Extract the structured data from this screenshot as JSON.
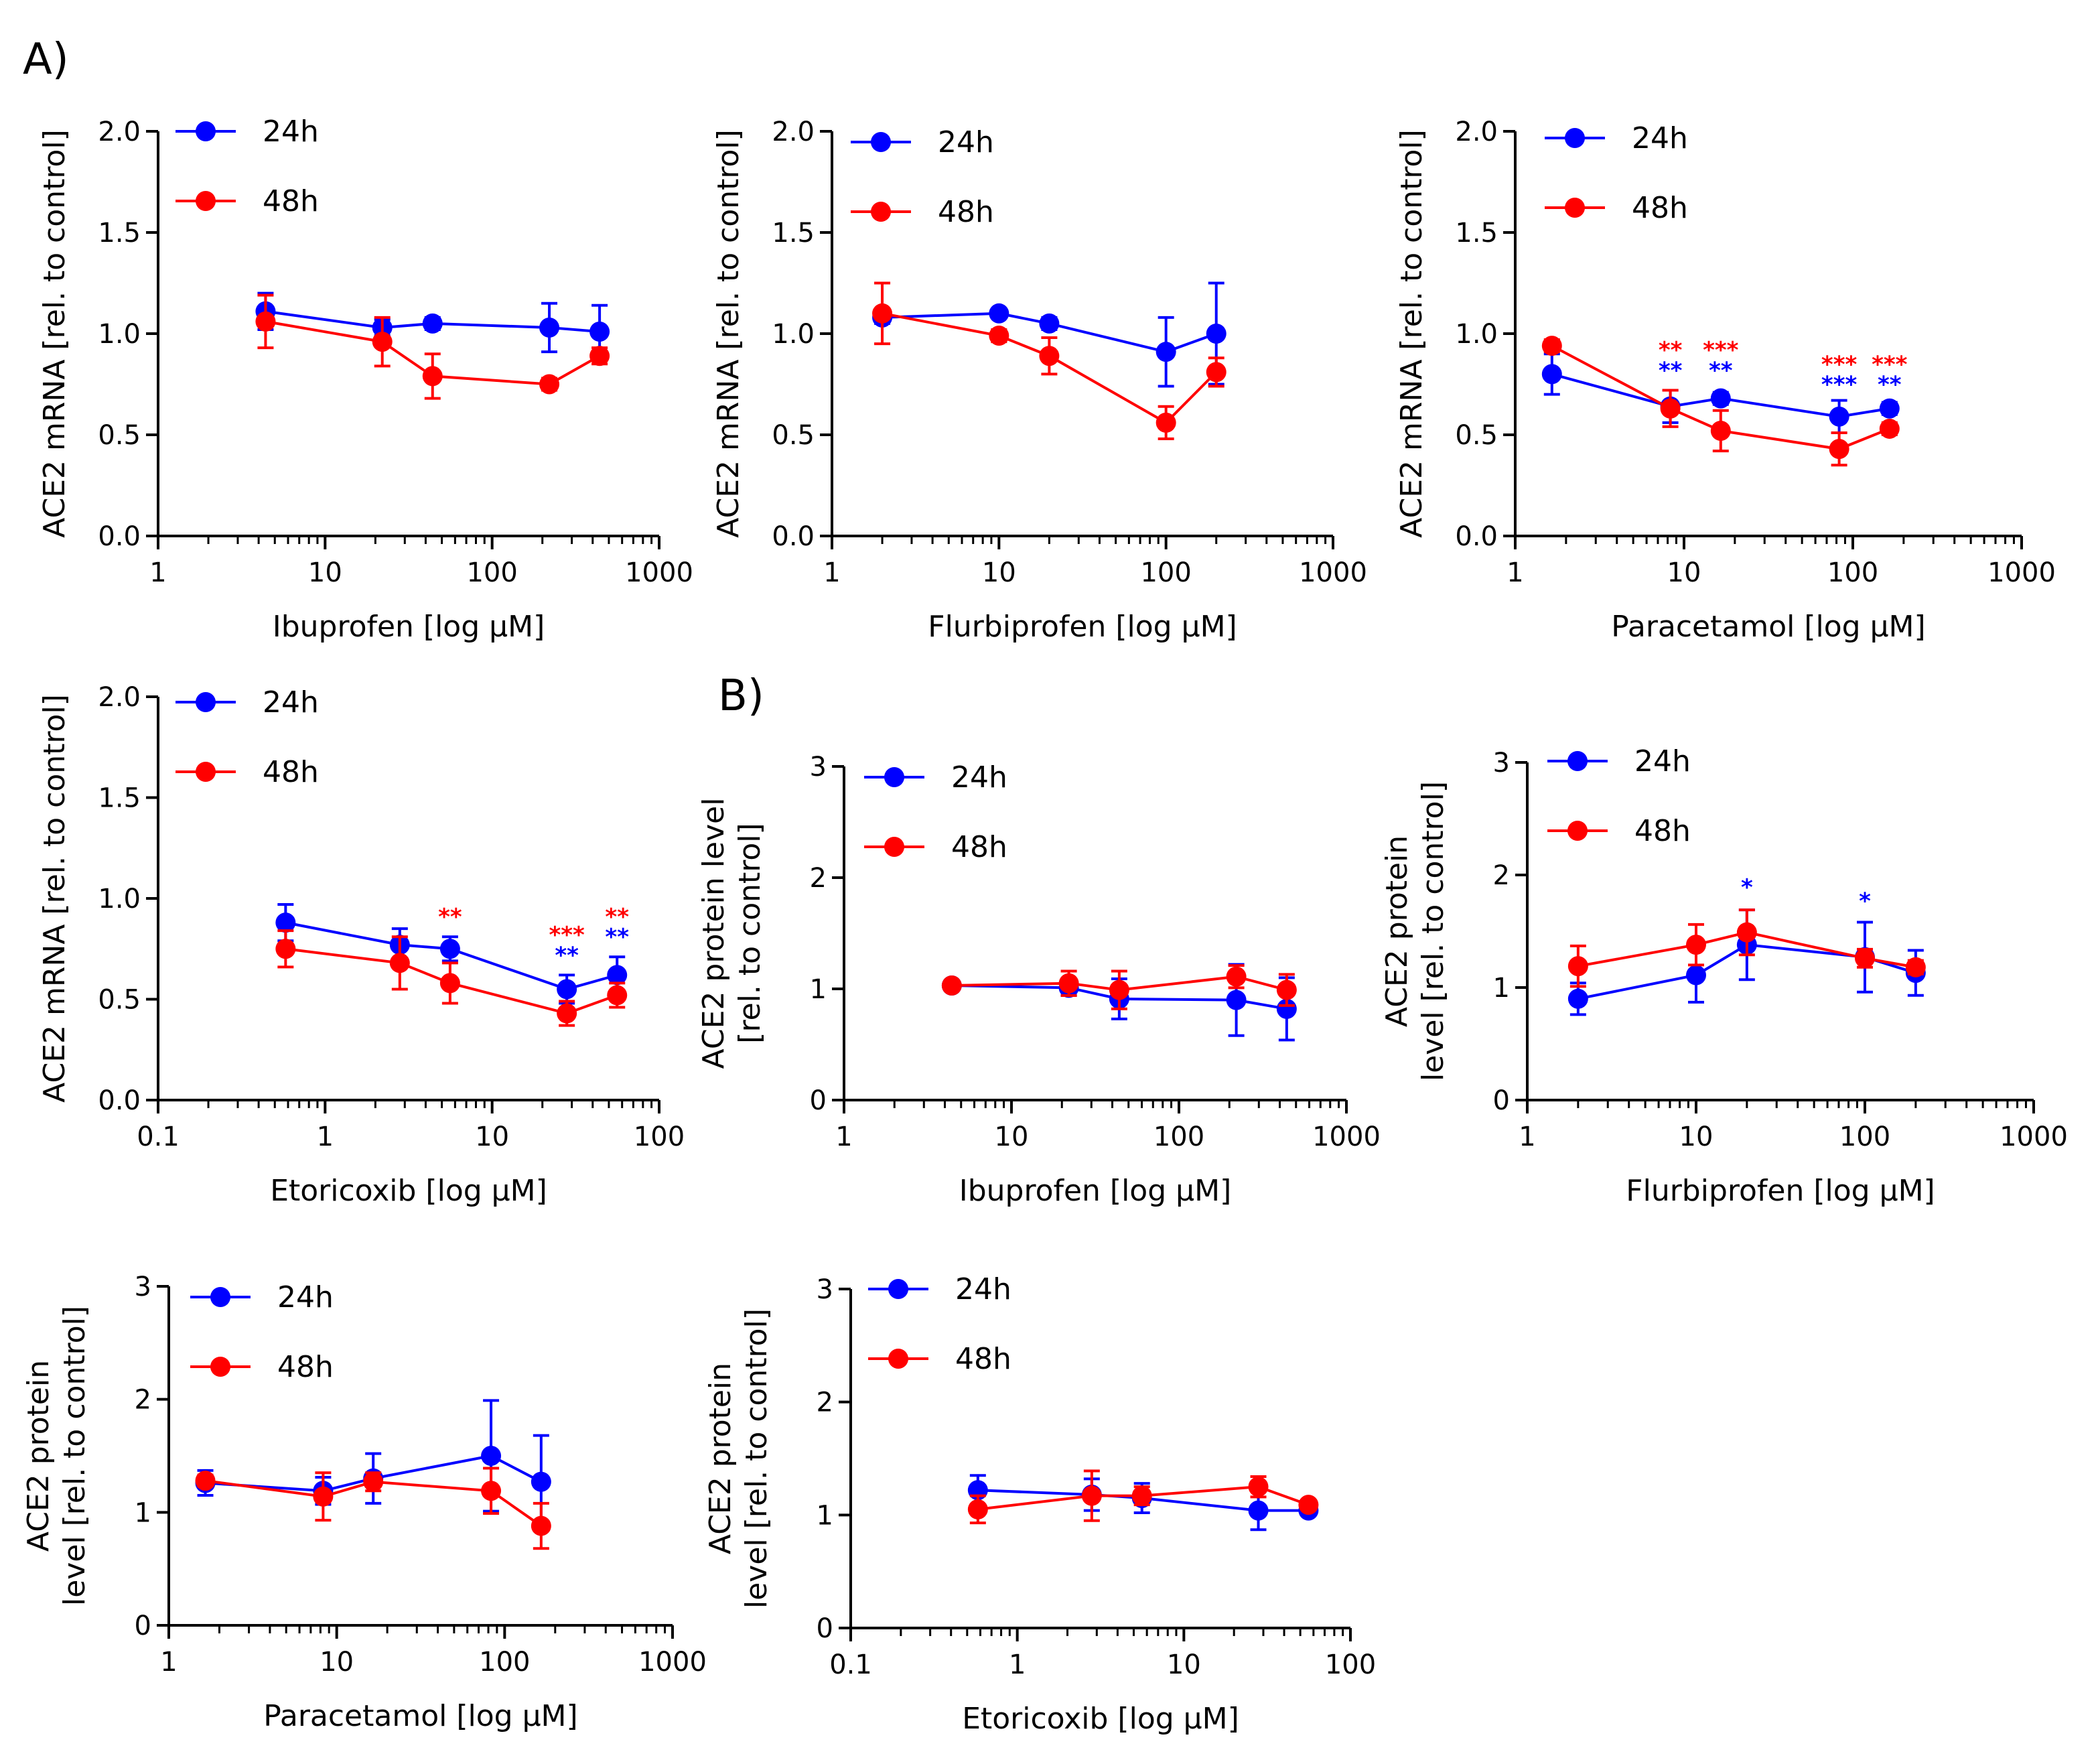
{
  "panel_labels": [
    "A)",
    "B)"
  ],
  "colors": {
    "series_24h": "#0000ff",
    "series_48h": "#ff0000",
    "axis": "#000000"
  },
  "chart_data": [
    {
      "type": "line",
      "title": "",
      "xlabel": "Ibuprofen [log µM]",
      "ylabel": "ACE2 mRNA [rel. to control]",
      "xscale": "log",
      "xlim": [
        1,
        1000
      ],
      "ylim": [
        0,
        2
      ],
      "xticks": [
        1,
        10,
        100,
        1000
      ],
      "xtick_labels": [
        "1",
        "10",
        "100",
        "1000"
      ],
      "yticks": [
        0,
        0.5,
        1,
        1.5,
        2
      ],
      "ytick_labels": [
        "0.0",
        "0.5",
        "1.0",
        "1.5",
        "2.0"
      ],
      "legend": [
        "24h",
        "48h"
      ],
      "series": [
        {
          "name": "24h",
          "color": "#0000ff",
          "x": [
            4.4,
            22,
            44,
            220,
            440
          ],
          "y": [
            1.11,
            1.03,
            1.05,
            1.03,
            1.01
          ],
          "err": [
            0.09,
            0.04,
            0.03,
            0.12,
            0.13
          ]
        },
        {
          "name": "48h",
          "color": "#ff0000",
          "x": [
            4.4,
            22,
            44,
            220,
            440
          ],
          "y": [
            1.06,
            0.96,
            0.79,
            0.75,
            0.89
          ],
          "err": [
            0.13,
            0.12,
            0.11,
            0.03,
            0.04
          ]
        }
      ],
      "annotations": []
    },
    {
      "type": "line",
      "title": "",
      "xlabel": "Flurbiprofen [log µM]",
      "ylabel": "ACE2 mRNA [rel. to control]",
      "xscale": "log",
      "xlim": [
        1,
        1000
      ],
      "ylim": [
        0,
        2
      ],
      "xticks": [
        1,
        10,
        100,
        1000
      ],
      "xtick_labels": [
        "1",
        "10",
        "100",
        "1000"
      ],
      "yticks": [
        0,
        0.5,
        1,
        1.5,
        2
      ],
      "ytick_labels": [
        "0.0",
        "0.5",
        "1.0",
        "1.5",
        "2.0"
      ],
      "legend": [
        "24h",
        "48h"
      ],
      "series": [
        {
          "name": "24h",
          "color": "#0000ff",
          "x": [
            2,
            10,
            20,
            100,
            200
          ],
          "y": [
            1.08,
            1.1,
            1.05,
            0.91,
            1.0
          ],
          "err": [
            0.03,
            0.02,
            0.03,
            0.17,
            0.25
          ]
        },
        {
          "name": "48h",
          "color": "#ff0000",
          "x": [
            2,
            10,
            20,
            100,
            200
          ],
          "y": [
            1.1,
            0.99,
            0.89,
            0.56,
            0.81
          ],
          "err": [
            0.15,
            0.03,
            0.09,
            0.08,
            0.07
          ]
        }
      ],
      "annotations": []
    },
    {
      "type": "line",
      "title": "",
      "xlabel": "Paracetamol [log µM]",
      "ylabel": "ACE2 mRNA [rel. to control]",
      "xscale": "log",
      "xlim": [
        1,
        1000
      ],
      "ylim": [
        0,
        2
      ],
      "xticks": [
        1,
        10,
        100,
        1000
      ],
      "xtick_labels": [
        "1",
        "10",
        "100",
        "1000"
      ],
      "yticks": [
        0,
        0.5,
        1,
        1.5,
        2
      ],
      "ytick_labels": [
        "0.0",
        "0.5",
        "1.0",
        "1.5",
        "2.0"
      ],
      "legend": [
        "24h",
        "48h"
      ],
      "series": [
        {
          "name": "24h",
          "color": "#0000ff",
          "x": [
            1.65,
            8.3,
            16.5,
            83,
            165
          ],
          "y": [
            0.8,
            0.64,
            0.68,
            0.59,
            0.63
          ],
          "err": [
            0.1,
            0.08,
            0.03,
            0.08,
            0.03
          ]
        },
        {
          "name": "48h",
          "color": "#ff0000",
          "x": [
            1.65,
            8.3,
            16.5,
            83,
            165
          ],
          "y": [
            0.94,
            0.63,
            0.52,
            0.43,
            0.53
          ],
          "err": [
            0.03,
            0.09,
            0.1,
            0.08,
            0.03
          ]
        }
      ],
      "annotations": [
        {
          "x": 8.3,
          "y": 0.88,
          "text": "**",
          "color": "#ff0000"
        },
        {
          "x": 8.3,
          "y": 0.78,
          "text": "**",
          "color": "#0000ff"
        },
        {
          "x": 16.5,
          "y": 0.88,
          "text": "***",
          "color": "#ff0000"
        },
        {
          "x": 16.5,
          "y": 0.78,
          "text": "**",
          "color": "#0000ff"
        },
        {
          "x": 83,
          "y": 0.81,
          "text": "***",
          "color": "#ff0000"
        },
        {
          "x": 83,
          "y": 0.71,
          "text": "***",
          "color": "#0000ff"
        },
        {
          "x": 165,
          "y": 0.81,
          "text": "***",
          "color": "#ff0000"
        },
        {
          "x": 165,
          "y": 0.71,
          "text": "**",
          "color": "#0000ff"
        }
      ]
    },
    {
      "type": "line",
      "title": "",
      "xlabel": "Etoricoxib [log µM]",
      "ylabel": "ACE2 mRNA [rel. to control]",
      "xscale": "log",
      "xlim": [
        0.1,
        100
      ],
      "ylim": [
        0,
        2
      ],
      "xticks": [
        0.1,
        1,
        10,
        100
      ],
      "xtick_labels": [
        "0.1",
        "1",
        "10",
        "100"
      ],
      "yticks": [
        0,
        0.5,
        1,
        1.5,
        2
      ],
      "ytick_labels": [
        "0.0",
        "0.5",
        "1.0",
        "1.5",
        "2.0"
      ],
      "legend": [
        "24h",
        "48h"
      ],
      "series": [
        {
          "name": "24h",
          "color": "#0000ff",
          "x": [
            0.58,
            2.8,
            5.6,
            28,
            56
          ],
          "y": [
            0.88,
            0.77,
            0.75,
            0.55,
            0.62
          ],
          "err": [
            0.09,
            0.08,
            0.06,
            0.07,
            0.09
          ]
        },
        {
          "name": "48h",
          "color": "#ff0000",
          "x": [
            0.58,
            2.8,
            5.6,
            28,
            56
          ],
          "y": [
            0.75,
            0.68,
            0.58,
            0.43,
            0.52
          ],
          "err": [
            0.09,
            0.13,
            0.1,
            0.06,
            0.06
          ]
        }
      ],
      "annotations": [
        {
          "x": 5.6,
          "y": 0.87,
          "text": "**",
          "color": "#ff0000"
        },
        {
          "x": 28,
          "y": 0.78,
          "text": "***",
          "color": "#ff0000"
        },
        {
          "x": 28,
          "y": 0.68,
          "text": "**",
          "color": "#0000ff"
        },
        {
          "x": 56,
          "y": 0.87,
          "text": "**",
          "color": "#ff0000"
        },
        {
          "x": 56,
          "y": 0.77,
          "text": "**",
          "color": "#0000ff"
        }
      ]
    },
    {
      "type": "line",
      "title": "",
      "xlabel": "Ibuprofen [log µM]",
      "ylabel_lines": [
        "ACE2 protein level",
        "[rel. to control]"
      ],
      "xscale": "log",
      "xlim": [
        1,
        1000
      ],
      "ylim": [
        0,
        3
      ],
      "xticks": [
        1,
        10,
        100,
        1000
      ],
      "xtick_labels": [
        "1",
        "10",
        "100",
        "1000"
      ],
      "yticks": [
        0,
        1,
        2,
        3
      ],
      "ytick_labels": [
        "0",
        "1",
        "2",
        "3"
      ],
      "legend": [
        "24h",
        "48h"
      ],
      "series": [
        {
          "name": "24h",
          "color": "#0000ff",
          "x": [
            4.4,
            22,
            44,
            220,
            440
          ],
          "y": [
            1.03,
            1.01,
            0.91,
            0.9,
            0.82
          ],
          "err": [
            0.02,
            0.07,
            0.18,
            0.32,
            0.28
          ]
        },
        {
          "name": "48h",
          "color": "#ff0000",
          "x": [
            4.4,
            22,
            44,
            220,
            440
          ],
          "y": [
            1.03,
            1.05,
            0.99,
            1.11,
            0.99
          ],
          "err": [
            0.02,
            0.11,
            0.17,
            0.1,
            0.14
          ]
        }
      ],
      "annotations": []
    },
    {
      "type": "line",
      "title": "",
      "xlabel": "Flurbiprofen [log µM]",
      "ylabel_lines": [
        "ACE2 protein",
        "level [rel. to control]"
      ],
      "xscale": "log",
      "xlim": [
        1,
        1000
      ],
      "ylim": [
        0,
        3
      ],
      "xticks": [
        1,
        10,
        100,
        1000
      ],
      "xtick_labels": [
        "1",
        "10",
        "100",
        "1000"
      ],
      "yticks": [
        0,
        1,
        2,
        3
      ],
      "ytick_labels": [
        "0",
        "1",
        "2",
        "3"
      ],
      "legend": [
        "24h",
        "48h"
      ],
      "series": [
        {
          "name": "24h",
          "color": "#0000ff",
          "x": [
            2,
            10,
            20,
            100,
            200
          ],
          "y": [
            0.9,
            1.11,
            1.38,
            1.27,
            1.13
          ],
          "err": [
            0.14,
            0.24,
            0.31,
            0.31,
            0.2
          ]
        },
        {
          "name": "48h",
          "color": "#ff0000",
          "x": [
            2,
            10,
            20,
            100,
            200
          ],
          "y": [
            1.19,
            1.38,
            1.49,
            1.26,
            1.18
          ],
          "err": [
            0.18,
            0.18,
            0.2,
            0.08,
            0.06
          ]
        }
      ],
      "annotations": [
        {
          "x": 20,
          "y": 1.82,
          "text": "*",
          "color": "#0000ff"
        },
        {
          "x": 100,
          "y": 1.7,
          "text": "*",
          "color": "#0000ff"
        }
      ]
    },
    {
      "type": "line",
      "title": "",
      "xlabel": "Paracetamol [log µM]",
      "ylabel_lines": [
        "ACE2 protein",
        "level [rel. to control]"
      ],
      "xscale": "log",
      "xlim": [
        1,
        1000
      ],
      "ylim": [
        0,
        3
      ],
      "xticks": [
        1,
        10,
        100,
        1000
      ],
      "xtick_labels": [
        "1",
        "10",
        "100",
        "1000"
      ],
      "yticks": [
        0,
        1,
        2,
        3
      ],
      "ytick_labels": [
        "0",
        "1",
        "2",
        "3"
      ],
      "legend": [
        "24h",
        "48h"
      ],
      "series": [
        {
          "name": "24h",
          "color": "#0000ff",
          "x": [
            1.65,
            8.3,
            16.5,
            83,
            165
          ],
          "y": [
            1.26,
            1.19,
            1.3,
            1.5,
            1.27
          ],
          "err": [
            0.11,
            0.12,
            0.22,
            0.49,
            0.41
          ]
        },
        {
          "name": "48h",
          "color": "#ff0000",
          "x": [
            1.65,
            8.3,
            16.5,
            83,
            165
          ],
          "y": [
            1.28,
            1.14,
            1.27,
            1.19,
            0.88
          ],
          "err": [
            0.05,
            0.21,
            0.08,
            0.2,
            0.2
          ]
        }
      ],
      "annotations": []
    },
    {
      "type": "line",
      "title": "",
      "xlabel": "Etoricoxib [log µM]",
      "ylabel_lines": [
        "ACE2 protein",
        "level [rel. to control]"
      ],
      "xscale": "log",
      "xlim": [
        0.1,
        100
      ],
      "ylim": [
        0,
        3
      ],
      "xticks": [
        0.1,
        1,
        10,
        100
      ],
      "xtick_labels": [
        "0.1",
        "1",
        "10",
        "100"
      ],
      "yticks": [
        0,
        1,
        2,
        3
      ],
      "ytick_labels": [
        "0",
        "1",
        "2",
        "3"
      ],
      "legend": [
        "24h",
        "48h"
      ],
      "series": [
        {
          "name": "24h",
          "color": "#0000ff",
          "x": [
            0.58,
            2.8,
            5.6,
            28,
            56
          ],
          "y": [
            1.22,
            1.18,
            1.15,
            1.04,
            1.04
          ],
          "err": [
            0.13,
            0.14,
            0.13,
            0.17,
            0.04
          ]
        },
        {
          "name": "48h",
          "color": "#ff0000",
          "x": [
            0.58,
            2.8,
            5.6,
            28,
            56
          ],
          "y": [
            1.05,
            1.17,
            1.17,
            1.25,
            1.09
          ],
          "err": [
            0.12,
            0.22,
            0.08,
            0.09,
            0.04
          ]
        }
      ],
      "annotations": []
    }
  ]
}
